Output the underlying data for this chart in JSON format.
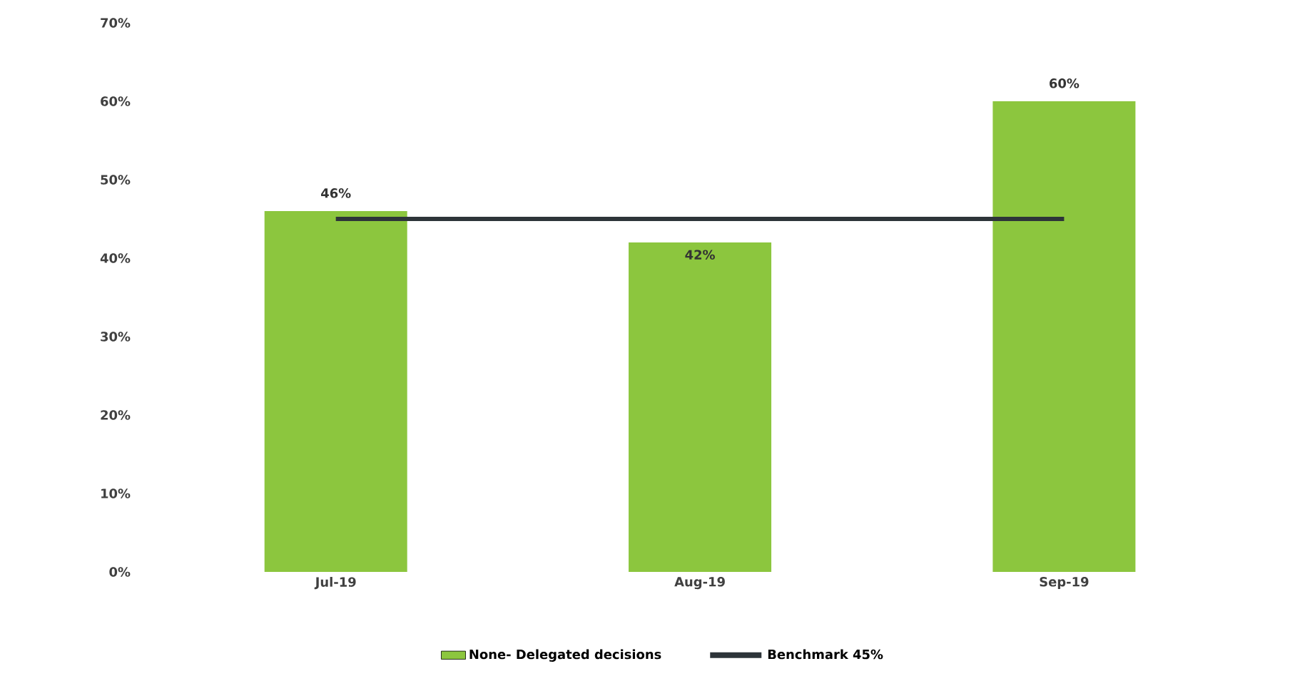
{
  "chart_data": {
    "type": "bar",
    "categories": [
      "Jul-19",
      "Aug-19",
      "Sep-19"
    ],
    "series": [
      {
        "name": "None- Delegated decisions",
        "type": "bar",
        "color": "#8cc63e",
        "values": [
          46,
          42,
          60
        ],
        "value_labels": [
          "46%",
          "42%",
          "60%"
        ]
      },
      {
        "name": "Benchmark 45%",
        "type": "line",
        "color": "#2d3439",
        "values": [
          45,
          45,
          45
        ]
      }
    ],
    "ylim": [
      0,
      70
    ],
    "yticks": [
      {
        "value": 0,
        "label": "0%"
      },
      {
        "value": 10,
        "label": "10%"
      },
      {
        "value": 20,
        "label": "20%"
      },
      {
        "value": 30,
        "label": "30%"
      },
      {
        "value": 40,
        "label": "40%"
      },
      {
        "value": 50,
        "label": "50%"
      },
      {
        "value": 60,
        "label": "60%"
      },
      {
        "value": 70,
        "label": "70%"
      }
    ],
    "grid": false,
    "legend": "bottom"
  }
}
